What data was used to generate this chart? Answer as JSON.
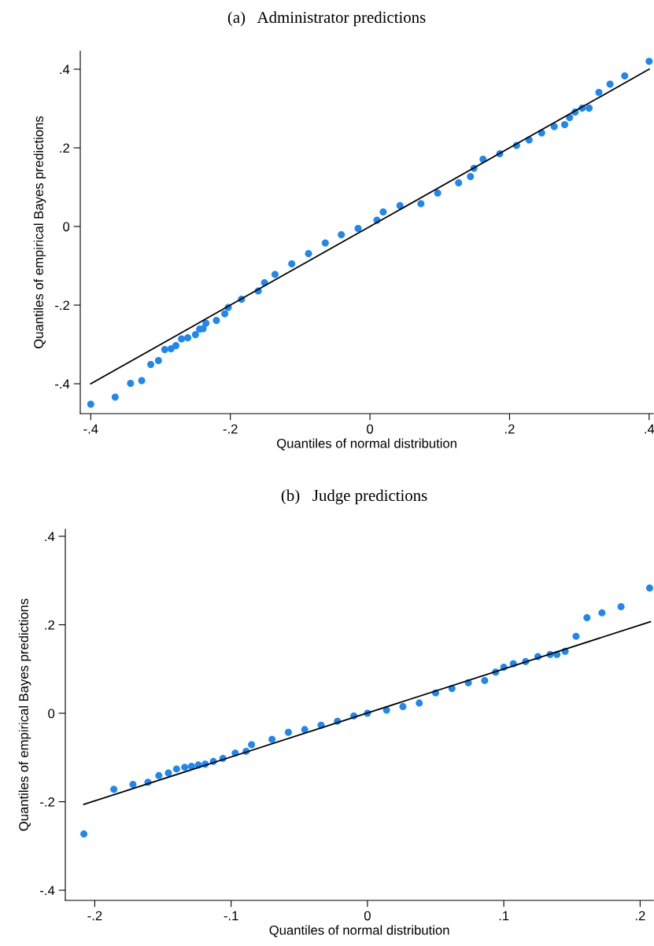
{
  "chart_data": [
    {
      "type": "scatter",
      "title": "(a)   Administrator predictions",
      "xlabel": "Quantiles of normal distribution",
      "ylabel": "Quantiles of empirical Bayes predictions",
      "xlim": [
        -0.415,
        0.406
      ],
      "ylim": [
        -0.476,
        0.446
      ],
      "xticks": [
        {
          "value": -0.4,
          "label": "-.4"
        },
        {
          "value": -0.2,
          "label": "-.2"
        },
        {
          "value": 0,
          "label": "0"
        },
        {
          "value": 0.2,
          "label": ".2"
        },
        {
          "value": 0.4,
          "label": ".4"
        }
      ],
      "yticks": [
        {
          "value": -0.4,
          "label": "-.4"
        },
        {
          "value": -0.2,
          "label": "-.2"
        },
        {
          "value": 0,
          "label": "0"
        },
        {
          "value": 0.2,
          "label": ".2"
        },
        {
          "value": 0.4,
          "label": ".4"
        }
      ],
      "grid": false,
      "legend": false,
      "marker": "circle",
      "series": [
        {
          "color": "#1e88f0",
          "x": [
            -0.4,
            -0.365,
            -0.343,
            -0.327,
            -0.314,
            -0.303,
            -0.294,
            -0.285,
            -0.278,
            -0.27,
            -0.261,
            -0.25,
            -0.244,
            -0.239,
            -0.235,
            -0.22,
            -0.208,
            -0.203,
            -0.184,
            -0.16,
            -0.151,
            -0.136,
            -0.112,
            -0.088,
            -0.064,
            -0.041,
            -0.017,
            0.01,
            0.019,
            0.043,
            0.073,
            0.097,
            0.127,
            0.144,
            0.149,
            0.162,
            0.186,
            0.21,
            0.228,
            0.246,
            0.264,
            0.279,
            0.286,
            0.294,
            0.304,
            0.314,
            0.328,
            0.344,
            0.365,
            0.4
          ],
          "values": [
            -0.452,
            -0.434,
            -0.399,
            -0.392,
            -0.351,
            -0.341,
            -0.313,
            -0.311,
            -0.303,
            -0.286,
            -0.283,
            -0.275,
            -0.261,
            -0.26,
            -0.246,
            -0.239,
            -0.222,
            -0.206,
            -0.185,
            -0.164,
            -0.143,
            -0.122,
            -0.095,
            -0.069,
            -0.042,
            -0.021,
            -0.005,
            0.016,
            0.037,
            0.053,
            0.058,
            0.085,
            0.111,
            0.127,
            0.148,
            0.171,
            0.185,
            0.206,
            0.22,
            0.238,
            0.254,
            0.259,
            0.277,
            0.291,
            0.301,
            0.301,
            0.341,
            0.362,
            0.383,
            0.42
          ]
        },
        {
          "type": "line",
          "color": "#000000",
          "marker": "none",
          "x": [
            -0.4,
            0.4
          ],
          "values": [
            -0.4,
            0.4
          ]
        }
      ]
    },
    {
      "type": "scatter",
      "title": "(b)   Judge predictions",
      "xlabel": "Quantiles of normal distribution",
      "ylabel": "Quantiles of empirical Bayes predictions",
      "xlim": [
        -0.2216,
        0.2097
      ],
      "ylim": [
        -0.423,
        0.416
      ],
      "xticks": [
        {
          "value": -0.2,
          "label": "-.2"
        },
        {
          "value": -0.1,
          "label": "-.1"
        },
        {
          "value": 0,
          "label": "0"
        },
        {
          "value": 0.1,
          "label": ".1"
        },
        {
          "value": 0.2,
          "label": ".2"
        }
      ],
      "yticks": [
        {
          "value": -0.4,
          "label": "-.4"
        },
        {
          "value": -0.2,
          "label": "-.2"
        },
        {
          "value": 0,
          "label": "0"
        },
        {
          "value": 0.2,
          "label": ".2"
        },
        {
          "value": 0.4,
          "label": ".4"
        }
      ],
      "grid": false,
      "legend": false,
      "marker": "circle",
      "series": [
        {
          "color": "#1e88f0",
          "x": [
            -0.208,
            -0.186,
            -0.172,
            -0.161,
            -0.153,
            -0.146,
            -0.14,
            -0.134,
            -0.129,
            -0.124,
            -0.119,
            -0.113,
            -0.106,
            -0.097,
            -0.089,
            -0.085,
            -0.07,
            -0.058,
            -0.046,
            -0.034,
            -0.022,
            -0.01,
            0.0,
            0.014,
            0.026,
            0.038,
            0.05,
            0.062,
            0.074,
            0.086,
            0.094,
            0.1,
            0.107,
            0.116,
            0.125,
            0.134,
            0.139,
            0.145,
            0.153,
            0.161,
            0.172,
            0.186,
            0.207
          ],
          "values": [
            -0.273,
            -0.172,
            -0.161,
            -0.156,
            -0.141,
            -0.135,
            -0.126,
            -0.122,
            -0.12,
            -0.117,
            -0.115,
            -0.109,
            -0.102,
            -0.09,
            -0.086,
            -0.071,
            -0.059,
            -0.043,
            -0.037,
            -0.027,
            -0.018,
            -0.006,
            0.0,
            0.007,
            0.015,
            0.023,
            0.046,
            0.056,
            0.069,
            0.074,
            0.093,
            0.104,
            0.112,
            0.117,
            0.128,
            0.133,
            0.133,
            0.14,
            0.174,
            0.216,
            0.227,
            0.241,
            0.283
          ]
        },
        {
          "type": "line",
          "color": "#000000",
          "marker": "none",
          "x": [
            -0.208,
            0.2075
          ],
          "values": [
            -0.206,
            0.207
          ]
        }
      ]
    }
  ]
}
